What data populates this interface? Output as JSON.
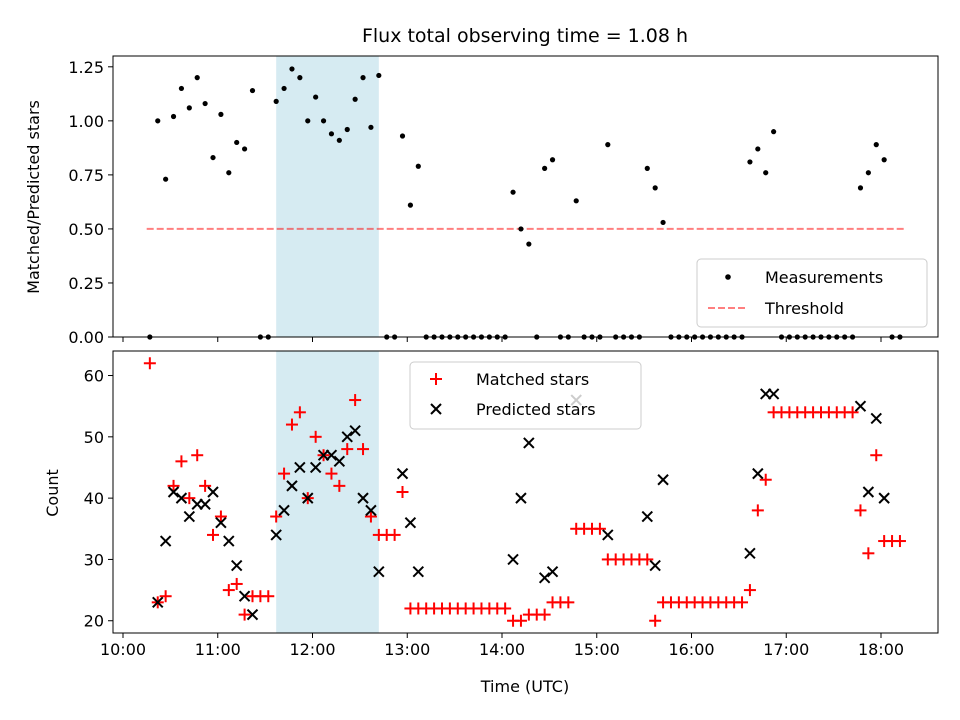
{
  "chart_data": [
    {
      "type": "scatter",
      "title": "Flux total observing time = 1.08 h",
      "xlabel": "",
      "ylabel": "Matched/Predicted stars",
      "xlim": [
        "10:00",
        "18:35"
      ],
      "ylim": [
        0,
        1.3
      ],
      "xticks": [
        "10:00",
        "11:00",
        "12:00",
        "13:00",
        "14:00",
        "15:00",
        "16:00",
        "17:00",
        "18:00"
      ],
      "yticks": [
        "0.00",
        "0.25",
        "0.50",
        "0.75",
        "1.00",
        "1.25"
      ],
      "shaded_region": {
        "x": [
          "11:37",
          "12:42"
        ],
        "color": "#add8e6"
      },
      "threshold": {
        "name": "Threshold",
        "value": 0.5,
        "x": [
          "10:15",
          "18:15"
        ],
        "color": "#ff0000"
      },
      "legend": {
        "position": "lower-right",
        "entries": [
          "Measurements",
          "Threshold"
        ]
      },
      "series": [
        {
          "name": "Measurements",
          "marker": "dot",
          "color": "#000000",
          "points": [
            [
              "10:17",
              0
            ],
            [
              "10:22",
              1.0
            ],
            [
              "10:27",
              0.73
            ],
            [
              "10:32",
              1.02
            ],
            [
              "10:37",
              1.15
            ],
            [
              "10:42",
              1.06
            ],
            [
              "10:47",
              1.2
            ],
            [
              "10:52",
              1.08
            ],
            [
              "10:57",
              0.83
            ],
            [
              "11:02",
              1.03
            ],
            [
              "11:07",
              0.76
            ],
            [
              "11:12",
              0.9
            ],
            [
              "11:17",
              0.87
            ],
            [
              "11:22",
              1.14
            ],
            [
              "11:27",
              0
            ],
            [
              "11:32",
              0
            ],
            [
              "11:37",
              1.09
            ],
            [
              "11:42",
              1.15
            ],
            [
              "11:47",
              1.24
            ],
            [
              "11:52",
              1.2
            ],
            [
              "11:57",
              1.0
            ],
            [
              "12:02",
              1.11
            ],
            [
              "12:07",
              1.0
            ],
            [
              "12:12",
              0.94
            ],
            [
              "12:17",
              0.91
            ],
            [
              "12:22",
              0.96
            ],
            [
              "12:27",
              1.1
            ],
            [
              "12:32",
              1.2
            ],
            [
              "12:37",
              0.97
            ],
            [
              "12:42",
              1.21
            ],
            [
              "12:47",
              0
            ],
            [
              "12:52",
              0
            ],
            [
              "12:57",
              0.93
            ],
            [
              "13:02",
              0.61
            ],
            [
              "13:07",
              0.79
            ],
            [
              "13:12",
              0
            ],
            [
              "13:17",
              0
            ],
            [
              "13:22",
              0
            ],
            [
              "13:27",
              0
            ],
            [
              "13:32",
              0
            ],
            [
              "13:37",
              0
            ],
            [
              "13:42",
              0
            ],
            [
              "13:47",
              0
            ],
            [
              "13:52",
              0
            ],
            [
              "13:57",
              0
            ],
            [
              "14:02",
              0
            ],
            [
              "14:07",
              0.67
            ],
            [
              "14:12",
              0.5
            ],
            [
              "14:17",
              0.43
            ],
            [
              "14:22",
              0
            ],
            [
              "14:27",
              0.78
            ],
            [
              "14:32",
              0.82
            ],
            [
              "14:37",
              0
            ],
            [
              "14:42",
              0
            ],
            [
              "14:47",
              0.63
            ],
            [
              "14:52",
              0
            ],
            [
              "14:57",
              0
            ],
            [
              "15:02",
              0
            ],
            [
              "15:07",
              0.89
            ],
            [
              "15:12",
              0
            ],
            [
              "15:17",
              0
            ],
            [
              "15:22",
              0
            ],
            [
              "15:27",
              0
            ],
            [
              "15:32",
              0.78
            ],
            [
              "15:37",
              0.69
            ],
            [
              "15:42",
              0.53
            ],
            [
              "15:47",
              0
            ],
            [
              "15:52",
              0
            ],
            [
              "15:57",
              0
            ],
            [
              "16:02",
              0
            ],
            [
              "16:07",
              0
            ],
            [
              "16:12",
              0
            ],
            [
              "16:17",
              0
            ],
            [
              "16:22",
              0
            ],
            [
              "16:27",
              0
            ],
            [
              "16:32",
              0
            ],
            [
              "16:37",
              0.81
            ],
            [
              "16:42",
              0.87
            ],
            [
              "16:47",
              0.76
            ],
            [
              "16:52",
              0.95
            ],
            [
              "16:57",
              0
            ],
            [
              "17:02",
              0
            ],
            [
              "17:07",
              0
            ],
            [
              "17:12",
              0
            ],
            [
              "17:17",
              0
            ],
            [
              "17:22",
              0
            ],
            [
              "17:27",
              0
            ],
            [
              "17:32",
              0
            ],
            [
              "17:37",
              0
            ],
            [
              "17:42",
              0
            ],
            [
              "17:47",
              0.69
            ],
            [
              "17:52",
              0.76
            ],
            [
              "17:57",
              0.89
            ],
            [
              "18:02",
              0.82
            ],
            [
              "18:07",
              0
            ],
            [
              "18:12",
              0
            ]
          ]
        }
      ]
    },
    {
      "type": "scatter",
      "title": "",
      "xlabel": "Time (UTC)",
      "ylabel": "Count",
      "xlim": [
        "10:00",
        "18:35"
      ],
      "ylim": [
        18,
        64
      ],
      "xticks": [
        "10:00",
        "11:00",
        "12:00",
        "13:00",
        "14:00",
        "15:00",
        "16:00",
        "17:00",
        "18:00"
      ],
      "yticks": [
        "20",
        "30",
        "40",
        "50",
        "60"
      ],
      "shaded_region": {
        "x": [
          "11:37",
          "12:42"
        ],
        "color": "#add8e6"
      },
      "legend": {
        "position": "upper-center",
        "entries": [
          "Matched stars",
          "Predicted stars"
        ]
      },
      "series": [
        {
          "name": "Matched stars",
          "marker": "plus",
          "color": "#ff0000",
          "points": [
            [
              "10:17",
              62
            ],
            [
              "10:22",
              23
            ],
            [
              "10:27",
              24
            ],
            [
              "10:32",
              42
            ],
            [
              "10:37",
              46
            ],
            [
              "10:42",
              40
            ],
            [
              "10:47",
              47
            ],
            [
              "10:52",
              42
            ],
            [
              "10:57",
              34
            ],
            [
              "11:02",
              37
            ],
            [
              "11:07",
              25
            ],
            [
              "11:12",
              26
            ],
            [
              "11:17",
              21
            ],
            [
              "11:22",
              24
            ],
            [
              "11:27",
              24
            ],
            [
              "11:32",
              24
            ],
            [
              "11:37",
              37
            ],
            [
              "11:42",
              44
            ],
            [
              "11:47",
              52
            ],
            [
              "11:52",
              54
            ],
            [
              "11:57",
              40
            ],
            [
              "12:02",
              50
            ],
            [
              "12:07",
              47
            ],
            [
              "12:12",
              44
            ],
            [
              "12:17",
              42
            ],
            [
              "12:22",
              48
            ],
            [
              "12:27",
              56
            ],
            [
              "12:32",
              48
            ],
            [
              "12:37",
              37
            ],
            [
              "12:42",
              34
            ],
            [
              "12:47",
              34
            ],
            [
              "12:52",
              34
            ],
            [
              "12:57",
              41
            ],
            [
              "13:02",
              22
            ],
            [
              "13:07",
              22
            ],
            [
              "13:12",
              22
            ],
            [
              "13:17",
              22
            ],
            [
              "13:22",
              22
            ],
            [
              "13:27",
              22
            ],
            [
              "13:32",
              22
            ],
            [
              "13:37",
              22
            ],
            [
              "13:42",
              22
            ],
            [
              "13:47",
              22
            ],
            [
              "13:52",
              22
            ],
            [
              "13:57",
              22
            ],
            [
              "14:02",
              22
            ],
            [
              "14:07",
              20
            ],
            [
              "14:12",
              20
            ],
            [
              "14:17",
              21
            ],
            [
              "14:22",
              21
            ],
            [
              "14:27",
              21
            ],
            [
              "14:32",
              23
            ],
            [
              "14:37",
              23
            ],
            [
              "14:42",
              23
            ],
            [
              "14:47",
              35
            ],
            [
              "14:52",
              35
            ],
            [
              "14:57",
              35
            ],
            [
              "15:02",
              35
            ],
            [
              "15:07",
              30
            ],
            [
              "15:12",
              30
            ],
            [
              "15:17",
              30
            ],
            [
              "15:22",
              30
            ],
            [
              "15:27",
              30
            ],
            [
              "15:32",
              30
            ],
            [
              "15:37",
              20
            ],
            [
              "15:42",
              23
            ],
            [
              "15:47",
              23
            ],
            [
              "15:52",
              23
            ],
            [
              "15:57",
              23
            ],
            [
              "16:02",
              23
            ],
            [
              "16:07",
              23
            ],
            [
              "16:12",
              23
            ],
            [
              "16:17",
              23
            ],
            [
              "16:22",
              23
            ],
            [
              "16:27",
              23
            ],
            [
              "16:32",
              23
            ],
            [
              "16:37",
              25
            ],
            [
              "16:42",
              38
            ],
            [
              "16:47",
              43
            ],
            [
              "16:52",
              54
            ],
            [
              "16:57",
              54
            ],
            [
              "17:02",
              54
            ],
            [
              "17:07",
              54
            ],
            [
              "17:12",
              54
            ],
            [
              "17:17",
              54
            ],
            [
              "17:22",
              54
            ],
            [
              "17:27",
              54
            ],
            [
              "17:32",
              54
            ],
            [
              "17:37",
              54
            ],
            [
              "17:42",
              54
            ],
            [
              "17:47",
              38
            ],
            [
              "17:52",
              31
            ],
            [
              "17:57",
              47
            ],
            [
              "18:02",
              33
            ],
            [
              "18:07",
              33
            ],
            [
              "18:12",
              33
            ]
          ]
        },
        {
          "name": "Predicted stars",
          "marker": "x",
          "color": "#000000",
          "points": [
            [
              "10:22",
              23
            ],
            [
              "10:27",
              33
            ],
            [
              "10:32",
              41
            ],
            [
              "10:37",
              40
            ],
            [
              "10:42",
              37
            ],
            [
              "10:47",
              39
            ],
            [
              "10:52",
              39
            ],
            [
              "10:57",
              41
            ],
            [
              "11:02",
              36
            ],
            [
              "11:07",
              33
            ],
            [
              "11:12",
              29
            ],
            [
              "11:17",
              24
            ],
            [
              "11:22",
              21
            ],
            [
              "11:37",
              34
            ],
            [
              "11:42",
              38
            ],
            [
              "11:47",
              42
            ],
            [
              "11:52",
              45
            ],
            [
              "11:57",
              40
            ],
            [
              "12:02",
              45
            ],
            [
              "12:07",
              47
            ],
            [
              "12:12",
              47
            ],
            [
              "12:17",
              46
            ],
            [
              "12:22",
              50
            ],
            [
              "12:27",
              51
            ],
            [
              "12:32",
              40
            ],
            [
              "12:37",
              38
            ],
            [
              "12:42",
              28
            ],
            [
              "12:57",
              44
            ],
            [
              "13:02",
              36
            ],
            [
              "13:07",
              28
            ],
            [
              "14:07",
              30
            ],
            [
              "14:12",
              40
            ],
            [
              "14:17",
              49
            ],
            [
              "14:27",
              27
            ],
            [
              "14:32",
              28
            ],
            [
              "14:47",
              56
            ],
            [
              "15:07",
              34
            ],
            [
              "15:32",
              37
            ],
            [
              "15:37",
              29
            ],
            [
              "15:42",
              43
            ],
            [
              "16:37",
              31
            ],
            [
              "16:42",
              44
            ],
            [
              "16:47",
              57
            ],
            [
              "16:52",
              57
            ],
            [
              "17:47",
              55
            ],
            [
              "17:52",
              41
            ],
            [
              "17:57",
              53
            ],
            [
              "18:02",
              40
            ]
          ]
        }
      ]
    }
  ]
}
